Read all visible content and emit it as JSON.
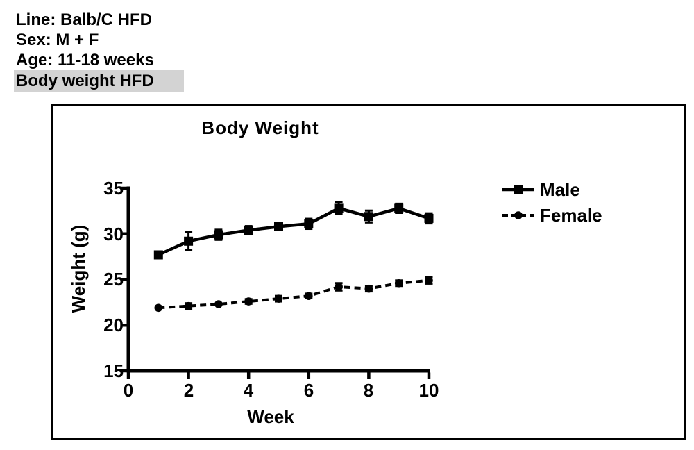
{
  "page": {
    "background": "#ffffff",
    "text_color": "#000000",
    "highlight_gray": "#d3d3d3"
  },
  "header": {
    "lines": [
      {
        "label": "Line: Balb/C HFD",
        "highlighted": false
      },
      {
        "label": "Sex: M + F",
        "highlighted": false
      },
      {
        "label": "Age: 11-18 weeks",
        "highlighted": false
      },
      {
        "label": "Body weight HFD",
        "highlighted": true
      }
    ]
  },
  "chart_data": {
    "type": "line",
    "title": "Body Weight",
    "xlabel": "Week",
    "ylabel": "Weight (g)",
    "xlim": [
      0,
      10
    ],
    "ylim": [
      15,
      35
    ],
    "x_ticks": [
      0,
      2,
      4,
      6,
      8,
      10
    ],
    "y_ticks": [
      15,
      20,
      25,
      30,
      35
    ],
    "x": [
      1,
      2,
      3,
      4,
      5,
      6,
      7,
      8,
      9,
      10
    ],
    "grid": false,
    "error_bars": true,
    "legend_position": "right",
    "series": [
      {
        "name": "Male",
        "marker": "square",
        "line_style": "solid",
        "color": "#000000",
        "values": [
          27.7,
          29.2,
          29.9,
          30.4,
          30.8,
          31.1,
          32.8,
          31.9,
          32.8,
          31.7
        ],
        "errors": [
          0.15,
          1.0,
          0.55,
          0.45,
          0.4,
          0.55,
          0.65,
          0.65,
          0.5,
          0.55
        ]
      },
      {
        "name": "Female",
        "marker": "circle",
        "line_style": "dashed",
        "color": "#000000",
        "values": [
          21.9,
          22.1,
          22.3,
          22.6,
          22.9,
          23.2,
          24.2,
          24.0,
          24.6,
          24.9
        ],
        "errors": [
          0.1,
          0.3,
          0.1,
          0.25,
          0.3,
          0.25,
          0.4,
          0.3,
          0.3,
          0.35
        ]
      }
    ]
  }
}
